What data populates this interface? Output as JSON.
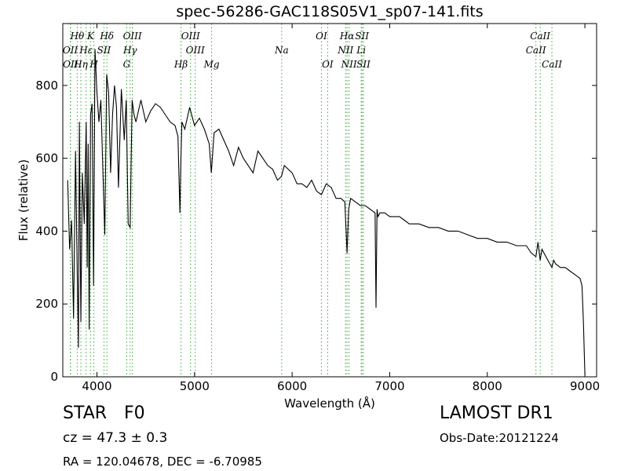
{
  "chart_data": {
    "type": "line",
    "title": "spec-56286-GAC118S05V1_sp07-141.fits",
    "xlabel": "Wavelength (Å)",
    "ylabel": "Flux (relative)",
    "xlim": [
      3650,
      9120
    ],
    "ylim": [
      0,
      970
    ],
    "xticks": [
      4000,
      5000,
      6000,
      7000,
      8000,
      9000
    ],
    "yticks": [
      0,
      200,
      400,
      600,
      800
    ],
    "grid": false,
    "line_color": "#000000",
    "marker_color": "#33aa33",
    "spectrum": {
      "x": [
        3700,
        3720,
        3740,
        3760,
        3780,
        3800,
        3810,
        3820,
        3835,
        3850,
        3870,
        3890,
        3900,
        3910,
        3920,
        3935,
        3950,
        3965,
        3980,
        4000,
        4020,
        4040,
        4060,
        4080,
        4100,
        4120,
        4140,
        4160,
        4180,
        4200,
        4220,
        4250,
        4280,
        4300,
        4320,
        4340,
        4360,
        4380,
        4400,
        4450,
        4500,
        4550,
        4600,
        4650,
        4700,
        4750,
        4800,
        4830,
        4850,
        4861,
        4870,
        4900,
        4950,
        5000,
        5050,
        5100,
        5150,
        5172,
        5200,
        5250,
        5300,
        5350,
        5400,
        5450,
        5500,
        5550,
        5600,
        5650,
        5700,
        5750,
        5800,
        5850,
        5890,
        5920,
        6000,
        6050,
        6100,
        6150,
        6200,
        6250,
        6300,
        6350,
        6400,
        6450,
        6500,
        6540,
        6563,
        6580,
        6600,
        6650,
        6700,
        6750,
        6800,
        6850,
        6860,
        6870,
        6880,
        6900,
        6950,
        7000,
        7050,
        7100,
        7150,
        7200,
        7300,
        7400,
        7500,
        7600,
        7700,
        7800,
        7900,
        8000,
        8100,
        8200,
        8300,
        8400,
        8450,
        8498,
        8520,
        8542,
        8560,
        8600,
        8662,
        8680,
        8700,
        8750,
        8800,
        8850,
        8900,
        8950,
        8970,
        8985,
        9000
      ],
      "y": [
        540,
        350,
        430,
        160,
        620,
        260,
        80,
        700,
        150,
        560,
        420,
        700,
        300,
        640,
        130,
        720,
        750,
        250,
        900,
        780,
        700,
        760,
        570,
        390,
        830,
        780,
        560,
        720,
        800,
        740,
        520,
        790,
        650,
        760,
        420,
        410,
        760,
        720,
        700,
        760,
        700,
        730,
        750,
        740,
        720,
        700,
        690,
        660,
        450,
        600,
        700,
        680,
        740,
        690,
        710,
        680,
        640,
        560,
        670,
        680,
        650,
        620,
        580,
        630,
        600,
        580,
        560,
        620,
        600,
        580,
        570,
        540,
        550,
        580,
        560,
        530,
        530,
        520,
        540,
        510,
        500,
        530,
        520,
        490,
        490,
        480,
        340,
        460,
        490,
        480,
        470,
        470,
        460,
        450,
        190,
        460,
        440,
        450,
        450,
        440,
        440,
        440,
        430,
        420,
        420,
        410,
        410,
        400,
        400,
        390,
        380,
        380,
        370,
        370,
        360,
        360,
        340,
        330,
        370,
        320,
        350,
        330,
        300,
        320,
        310,
        300,
        300,
        290,
        280,
        270,
        250,
        150,
        5
      ]
    },
    "lines": [
      {
        "label": "Hθ",
        "x": 3798,
        "row": 1
      },
      {
        "label": "OII",
        "x": 3727,
        "row": 2
      },
      {
        "label": "OII",
        "x": 3729,
        "row": 3
      },
      {
        "label": "Hη",
        "x": 3835,
        "row": 3
      },
      {
        "label": "Hε",
        "x": 3889,
        "row": 2
      },
      {
        "label": "K",
        "x": 3934,
        "row": 1
      },
      {
        "label": "H",
        "x": 3969,
        "row": 3
      },
      {
        "label": "SII",
        "x": 4072,
        "row": 2
      },
      {
        "label": "Hδ",
        "x": 4102,
        "row": 1
      },
      {
        "label": "OIII",
        "x": 4363,
        "row": 1
      },
      {
        "label": "Hγ",
        "x": 4340,
        "row": 2
      },
      {
        "label": "G",
        "x": 4305,
        "row": 3
      },
      {
        "label": "OIII",
        "x": 4959,
        "row": 1
      },
      {
        "label": "OIII",
        "x": 5007,
        "row": 2
      },
      {
        "label": "Hβ",
        "x": 4861,
        "row": 3
      },
      {
        "label": "Mg",
        "x": 5175,
        "row": 3
      },
      {
        "label": "Na",
        "x": 5893,
        "row": 2
      },
      {
        "label": "OI",
        "x": 6300,
        "row": 1
      },
      {
        "label": "OI",
        "x": 6364,
        "row": 3
      },
      {
        "label": "Hα",
        "x": 6563,
        "row": 1
      },
      {
        "label": "SII",
        "x": 6716,
        "row": 1
      },
      {
        "label": "NII",
        "x": 6548,
        "row": 2
      },
      {
        "label": "Li",
        "x": 6708,
        "row": 2
      },
      {
        "label": "NII",
        "x": 6583,
        "row": 3
      },
      {
        "label": "SII",
        "x": 6731,
        "row": 3
      },
      {
        "label": "CaII",
        "x": 8542,
        "row": 1
      },
      {
        "label": "CaII",
        "x": 8498,
        "row": 2
      },
      {
        "label": "CaII",
        "x": 8662,
        "row": 3
      }
    ]
  },
  "info": {
    "class": "STAR",
    "subclass": "F0",
    "cz": "cz = 47.3  ± 0.3",
    "radec": "RA = 120.04678, DEC = -6.70985",
    "survey": "LAMOST DR1",
    "obs_date": "Obs-Date:20121224"
  }
}
